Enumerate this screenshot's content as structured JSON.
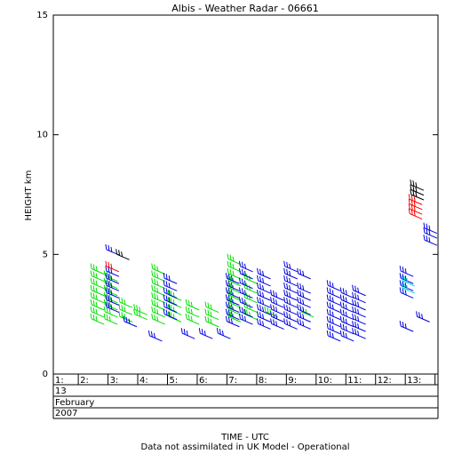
{
  "chart_data": {
    "type": "barbs",
    "title": "Albis - Weather Radar - 06661",
    "ylabel": "HEIGHT km",
    "xlabel": "TIME - UTC",
    "footnote": "Data not assimilated in UK Model - Operational",
    "date_rows": [
      "13",
      "February",
      "2007"
    ],
    "ylim": [
      0,
      15
    ],
    "yticks": [
      0,
      5,
      10,
      15
    ],
    "xlim": [
      1.16,
      14.1
    ],
    "xticks": [
      {
        "value": 1,
        "label": "1:"
      },
      {
        "value": 2,
        "label": "2:"
      },
      {
        "value": 3,
        "label": "3:"
      },
      {
        "value": 4,
        "label": "4:"
      },
      {
        "value": 5,
        "label": "5:"
      },
      {
        "value": 6,
        "label": "6:"
      },
      {
        "value": 7,
        "label": "7:"
      },
      {
        "value": 8,
        "label": "8:"
      },
      {
        "value": 9,
        "label": "9:"
      },
      {
        "value": 10,
        "label": "10:"
      },
      {
        "value": 11,
        "label": "11:"
      },
      {
        "value": 12,
        "label": "12:"
      },
      {
        "value": 13,
        "label": "13:"
      },
      {
        "value": 14,
        "label": ""
      }
    ],
    "series": [
      {
        "color": "#00e000",
        "x": [
          2.45,
          2.45,
          2.45,
          2.45,
          2.45,
          2.45,
          2.45,
          2.45,
          2.9,
          2.9,
          2.9,
          2.9,
          2.9,
          2.9,
          2.9,
          3.4,
          3.4,
          3.4,
          3.9,
          3.9,
          4.5,
          4.5,
          4.5,
          4.5,
          4.5,
          4.5,
          4.5,
          4.5,
          5.05,
          5.05,
          5.05,
          5.05,
          5.65,
          5.65,
          5.65,
          6.3,
          6.3,
          6.3,
          7.05,
          7.05,
          7.05,
          7.05,
          7.05,
          7.05,
          7.05,
          7.05,
          7.05,
          7.6,
          7.6,
          7.6,
          7.6,
          7.6,
          8.3,
          9.5
        ],
        "y": [
          2.3,
          2.6,
          2.9,
          3.2,
          3.5,
          3.8,
          4.1,
          4.4,
          2.3,
          2.6,
          2.9,
          3.2,
          3.5,
          3.8,
          4.1,
          2.4,
          2.7,
          3.0,
          2.5,
          2.7,
          2.3,
          2.6,
          2.9,
          3.2,
          3.5,
          3.8,
          4.1,
          4.4,
          2.4,
          2.7,
          3.0,
          3.3,
          2.3,
          2.6,
          2.9,
          2.2,
          2.5,
          2.8,
          2.4,
          2.7,
          3.0,
          3.3,
          3.6,
          3.9,
          4.2,
          4.5,
          4.8,
          2.5,
          2.8,
          3.2,
          3.6,
          4.0,
          2.6,
          2.6
        ]
      },
      {
        "color": "#0000e0",
        "x": [
          2.95,
          2.95,
          2.95,
          2.95,
          2.95,
          2.95,
          2.95,
          3.55,
          4.4,
          4.9,
          4.9,
          4.9,
          4.9,
          4.9,
          4.9,
          5.5,
          6.1,
          6.7,
          7.0,
          7.0,
          7.0,
          7.0,
          7.0,
          7.0,
          7.0,
          7.45,
          7.45,
          7.45,
          7.45,
          7.45,
          7.45,
          7.45,
          8.05,
          8.05,
          8.05,
          8.05,
          8.05,
          8.05,
          8.05,
          8.05,
          8.5,
          8.5,
          8.5,
          8.5,
          8.5,
          8.95,
          8.95,
          8.95,
          8.95,
          8.95,
          8.95,
          8.95,
          8.95,
          8.95,
          9.4,
          9.4,
          9.4,
          9.4,
          9.4,
          9.4,
          9.4,
          10.4,
          10.4,
          10.4,
          10.4,
          10.4,
          10.4,
          10.4,
          10.4,
          10.85,
          10.85,
          10.85,
          10.85,
          10.85,
          10.85,
          10.85,
          11.25,
          11.25,
          11.25,
          11.25,
          11.25,
          11.25,
          11.25,
          12.85,
          12.85,
          12.85,
          12.85,
          12.85,
          13.4,
          13.65,
          13.65,
          13.65
        ],
        "y": [
          2.8,
          3.1,
          3.4,
          3.7,
          4.0,
          4.3,
          5.2,
          2.2,
          1.6,
          2.5,
          2.8,
          3.1,
          3.4,
          3.7,
          4.0,
          1.7,
          1.7,
          1.7,
          2.2,
          2.5,
          2.8,
          3.1,
          3.4,
          3.7,
          4.0,
          2.3,
          2.6,
          3.0,
          3.4,
          3.8,
          4.2,
          4.5,
          2.1,
          2.4,
          2.7,
          3.0,
          3.3,
          3.6,
          3.9,
          4.2,
          2.1,
          2.4,
          2.7,
          3.0,
          3.3,
          2.1,
          2.4,
          2.7,
          3.0,
          3.3,
          3.6,
          3.9,
          4.2,
          4.5,
          2.1,
          2.4,
          2.7,
          3.0,
          3.3,
          3.6,
          4.2,
          1.6,
          1.9,
          2.2,
          2.5,
          2.8,
          3.1,
          3.4,
          3.7,
          1.6,
          1.9,
          2.2,
          2.5,
          2.8,
          3.1,
          3.4,
          1.7,
          2.0,
          2.3,
          2.6,
          2.9,
          3.2,
          3.5,
          2.0,
          3.4,
          3.7,
          4.0,
          4.3,
          2.4,
          5.6,
          5.9,
          6.1
        ]
      },
      {
        "color": "#ff0000",
        "x": [
          2.95,
          13.15,
          13.15,
          13.15,
          13.15
        ],
        "y": [
          4.5,
          6.7,
          6.9,
          7.1,
          7.3
        ]
      },
      {
        "color": "#00e0e0",
        "x": [
          12.9,
          12.9
        ],
        "y": [
          3.6,
          3.9
        ]
      },
      {
        "color": "#000000",
        "x": [
          3.3,
          13.2,
          13.2,
          13.2
        ],
        "y": [
          5.0,
          7.5,
          7.7,
          7.9
        ]
      }
    ]
  }
}
